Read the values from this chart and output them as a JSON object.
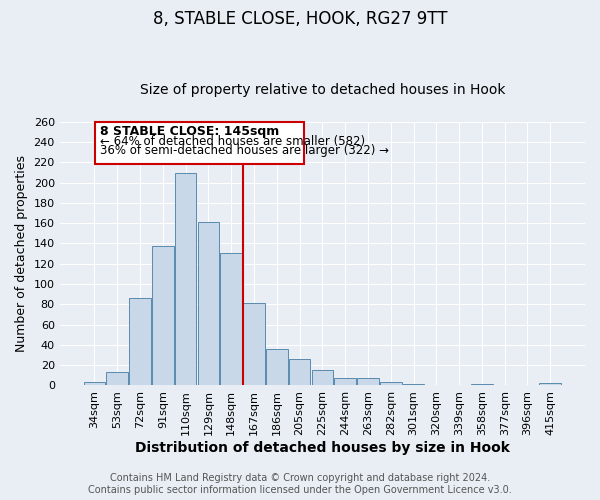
{
  "title": "8, STABLE CLOSE, HOOK, RG27 9TT",
  "subtitle": "Size of property relative to detached houses in Hook",
  "xlabel": "Distribution of detached houses by size in Hook",
  "ylabel": "Number of detached properties",
  "categories": [
    "34sqm",
    "53sqm",
    "72sqm",
    "91sqm",
    "110sqm",
    "129sqm",
    "148sqm",
    "167sqm",
    "186sqm",
    "205sqm",
    "225sqm",
    "244sqm",
    "263sqm",
    "282sqm",
    "301sqm",
    "320sqm",
    "339sqm",
    "358sqm",
    "377sqm",
    "396sqm",
    "415sqm"
  ],
  "values": [
    3,
    13,
    86,
    138,
    209,
    161,
    131,
    81,
    36,
    26,
    15,
    7,
    7,
    3,
    1,
    0,
    0,
    1,
    0,
    0,
    2
  ],
  "bar_color": "#c8d8e8",
  "bar_edge_color": "#5a8ab0",
  "vline_x": 6.5,
  "vline_color": "#cc0000",
  "ylim": [
    0,
    260
  ],
  "yticks": [
    0,
    20,
    40,
    60,
    80,
    100,
    120,
    140,
    160,
    180,
    200,
    220,
    240,
    260
  ],
  "box_text_line1": "8 STABLE CLOSE: 145sqm",
  "box_text_line2": "← 64% of detached houses are smaller (582)",
  "box_text_line3": "36% of semi-detached houses are larger (322) →",
  "box_edge_color": "#cc0000",
  "footer_line1": "Contains HM Land Registry data © Crown copyright and database right 2024.",
  "footer_line2": "Contains public sector information licensed under the Open Government Licence v3.0.",
  "bg_color": "#e8eef4",
  "title_fontsize": 12,
  "subtitle_fontsize": 10,
  "xlabel_fontsize": 10,
  "ylabel_fontsize": 9,
  "tick_fontsize": 8,
  "footer_fontsize": 7
}
